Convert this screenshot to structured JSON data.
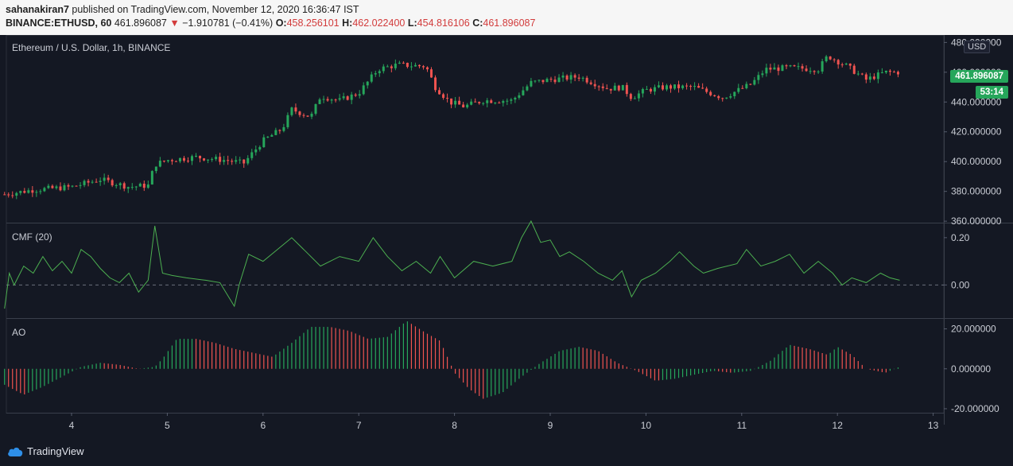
{
  "header": {
    "author": "sahanakiran7",
    "published_text": "published on TradingView.com, November 12, 2020 16:36:47 IST",
    "symbol": "BINANCE:ETHUSD, 60",
    "last": "461.896087",
    "change_arrow": "▼",
    "change": "−1.910781 (−0.41%)",
    "o_label": "O:",
    "o_val": "458.256101",
    "h_label": "H:",
    "h_val": "462.022400",
    "l_label": "L:",
    "l_val": "454.816106",
    "c_label": "C:",
    "c_val": "461.896087"
  },
  "price_pane": {
    "title": "Ethereum / U.S. Dollar, 1h, BINANCE",
    "currency": "USD",
    "last_price_tag": "461.896087",
    "countdown_tag": "53:14"
  },
  "cmf_pane": {
    "title": "CMF (20)"
  },
  "ao_pane": {
    "title": "AO"
  },
  "footer": {
    "brand": "TradingView"
  },
  "colors": {
    "up": "#26a65b",
    "down": "#ef5350",
    "cmf": "#4caf50",
    "bg": "#141823"
  },
  "chart_data": [
    {
      "type": "candlestick",
      "title": "Ethereum / U.S. Dollar, 1h, BINANCE",
      "x_ticks": [
        "4",
        "5",
        "6",
        "7",
        "8",
        "9",
        "10",
        "11",
        "12",
        "13"
      ],
      "y_ticks": [
        "480.000000",
        "460.000000",
        "440.000000",
        "420.000000",
        "400.000000",
        "380.000000",
        "360.000000"
      ],
      "ylim": [
        359,
        485
      ],
      "close_path": [
        [
          3.3,
          378
        ],
        [
          3.6,
          381
        ],
        [
          4.0,
          383
        ],
        [
          4.3,
          388
        ],
        [
          4.6,
          383
        ],
        [
          4.8,
          384
        ],
        [
          4.87,
          398
        ],
        [
          5.0,
          401
        ],
        [
          5.3,
          403
        ],
        [
          5.6,
          401
        ],
        [
          5.8,
          399
        ],
        [
          6.0,
          414
        ],
        [
          6.2,
          422
        ],
        [
          6.3,
          435
        ],
        [
          6.5,
          430
        ],
        [
          6.6,
          444
        ],
        [
          6.8,
          441
        ],
        [
          7.0,
          446
        ],
        [
          7.2,
          462
        ],
        [
          7.4,
          465
        ],
        [
          7.7,
          464
        ],
        [
          7.8,
          450
        ],
        [
          7.95,
          440
        ],
        [
          8.1,
          437
        ],
        [
          8.3,
          441
        ],
        [
          8.6,
          441
        ],
        [
          8.8,
          453
        ],
        [
          9.0,
          455
        ],
        [
          9.3,
          457
        ],
        [
          9.6,
          449
        ],
        [
          9.75,
          450
        ],
        [
          9.85,
          443
        ],
        [
          10.0,
          448
        ],
        [
          10.2,
          450
        ],
        [
          10.5,
          450
        ],
        [
          10.8,
          443
        ],
        [
          11.1,
          452
        ],
        [
          11.25,
          462
        ],
        [
          11.5,
          463
        ],
        [
          11.8,
          462
        ],
        [
          11.9,
          471
        ],
        [
          12.1,
          464
        ],
        [
          12.3,
          455
        ],
        [
          12.5,
          460
        ],
        [
          12.65,
          460
        ]
      ]
    },
    {
      "type": "line",
      "title": "CMF (20)",
      "y_ticks": [
        "0.20",
        "0.00"
      ],
      "ylim": [
        -0.14,
        0.26
      ],
      "x": [
        3.3,
        3.35,
        3.4,
        3.5,
        3.6,
        3.7,
        3.8,
        3.9,
        4.0,
        4.1,
        4.2,
        4.3,
        4.4,
        4.5,
        4.6,
        4.7,
        4.8,
        4.87,
        4.95,
        5.05,
        5.2,
        5.4,
        5.55,
        5.7,
        5.75,
        5.85,
        6.0,
        6.15,
        6.3,
        6.45,
        6.6,
        6.8,
        7.0,
        7.15,
        7.3,
        7.45,
        7.6,
        7.75,
        7.85,
        8.0,
        8.2,
        8.4,
        8.6,
        8.7,
        8.8,
        8.9,
        9.0,
        9.1,
        9.2,
        9.35,
        9.5,
        9.65,
        9.75,
        9.85,
        9.95,
        10.1,
        10.25,
        10.35,
        10.5,
        10.6,
        10.75,
        10.95,
        11.05,
        11.2,
        11.35,
        11.5,
        11.65,
        11.8,
        11.95,
        12.05,
        12.15,
        12.3,
        12.45,
        12.55,
        12.65
      ],
      "values": [
        -0.1,
        0.05,
        0.0,
        0.08,
        0.05,
        0.12,
        0.06,
        0.1,
        0.05,
        0.15,
        0.12,
        0.07,
        0.03,
        0.01,
        0.05,
        -0.03,
        0.02,
        0.25,
        0.05,
        0.04,
        0.03,
        0.02,
        0.01,
        -0.09,
        0.0,
        0.13,
        0.1,
        0.15,
        0.2,
        0.14,
        0.08,
        0.12,
        0.1,
        0.2,
        0.12,
        0.06,
        0.1,
        0.05,
        0.12,
        0.03,
        0.1,
        0.08,
        0.1,
        0.2,
        0.27,
        0.18,
        0.19,
        0.12,
        0.14,
        0.1,
        0.05,
        0.02,
        0.06,
        -0.05,
        0.02,
        0.05,
        0.1,
        0.14,
        0.08,
        0.05,
        0.07,
        0.09,
        0.15,
        0.08,
        0.1,
        0.13,
        0.05,
        0.1,
        0.05,
        0.0,
        0.03,
        0.01,
        0.05,
        0.03,
        0.02
      ],
      "baseline": 0
    },
    {
      "type": "histogram",
      "title": "AO",
      "y_ticks": [
        "20.000000",
        "0.000000",
        "-20.000000"
      ],
      "ylim": [
        -22,
        25
      ],
      "x": [
        3.3,
        3.5,
        3.7,
        3.9,
        4.1,
        4.3,
        4.5,
        4.7,
        4.87,
        4.95,
        5.1,
        5.3,
        5.5,
        5.7,
        5.9,
        6.1,
        6.3,
        6.5,
        6.7,
        6.9,
        7.1,
        7.3,
        7.5,
        7.7,
        7.85,
        8.0,
        8.15,
        8.3,
        8.5,
        8.7,
        8.9,
        9.1,
        9.3,
        9.5,
        9.7,
        9.9,
        10.1,
        10.3,
        10.5,
        10.7,
        10.9,
        11.1,
        11.3,
        11.5,
        11.7,
        11.9,
        12.0,
        12.15,
        12.3,
        12.5,
        12.65
      ],
      "values": [
        -8,
        -13,
        -9,
        -4,
        1,
        3,
        2,
        0,
        1,
        5,
        15,
        15,
        13,
        10,
        8,
        6,
        13,
        21,
        21,
        19,
        15,
        16,
        24,
        18,
        14,
        -2,
        -10,
        -15,
        -12,
        -4,
        3,
        9,
        11,
        9,
        3,
        -1,
        -6,
        -5,
        -3,
        -1,
        -2,
        -1,
        4,
        12,
        10,
        7,
        11,
        7,
        0,
        -2,
        1
      ]
    }
  ]
}
